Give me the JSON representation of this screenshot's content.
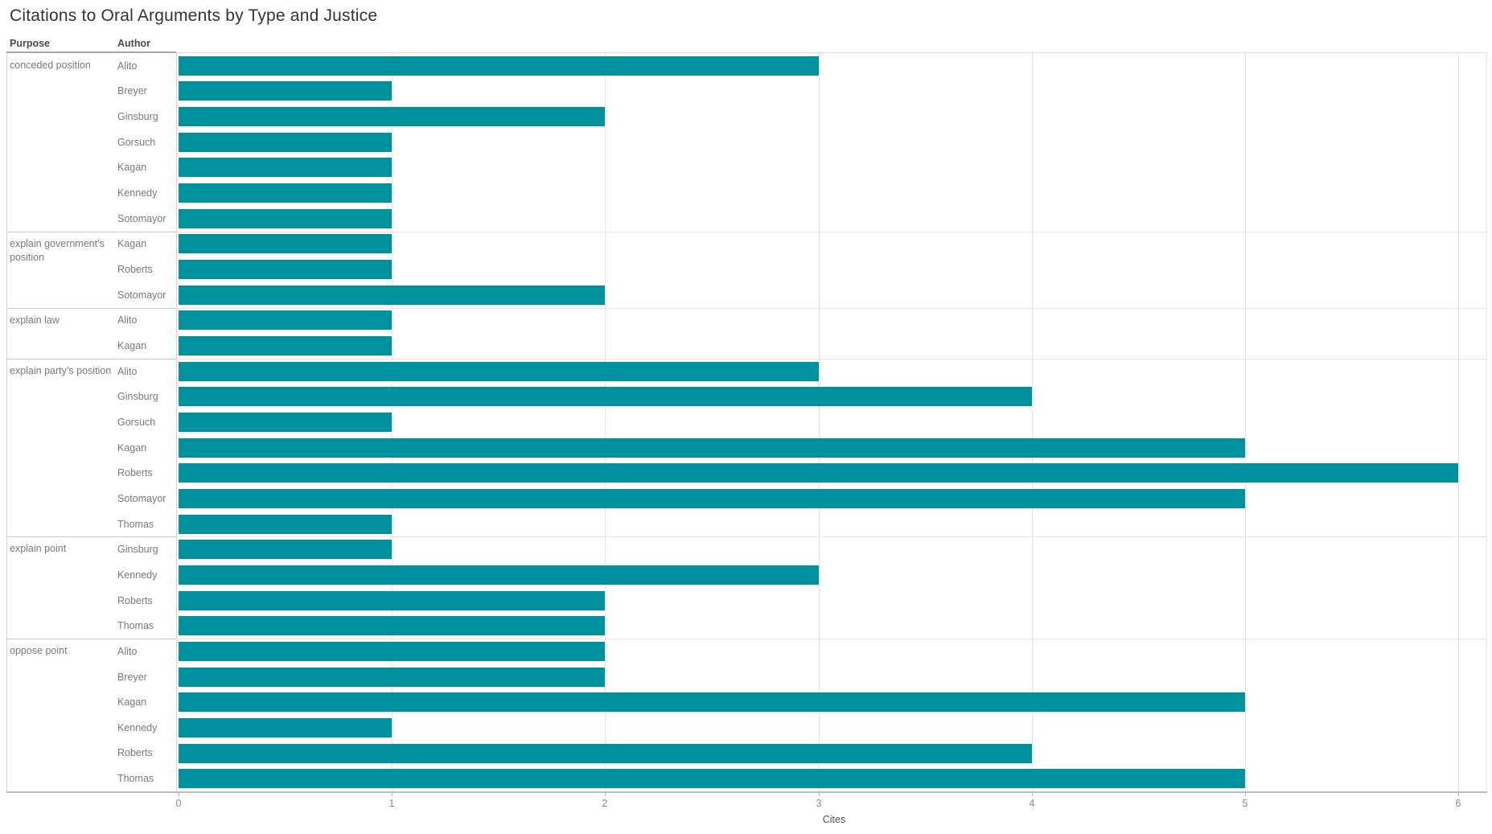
{
  "title": "Citations to Oral Arguments by Type and Justice",
  "column_headers": {
    "purpose": "Purpose",
    "author": "Author"
  },
  "axis": {
    "label": "Cites",
    "tick_labels": [
      "0",
      "1",
      "2",
      "3",
      "4",
      "5",
      "6"
    ],
    "min": 0,
    "max": 6
  },
  "colors": {
    "bar": "#00919e",
    "gridline": "#e4e4e4",
    "axis_line": "#bdbdbd"
  },
  "chart_data": {
    "type": "bar",
    "orientation": "horizontal",
    "title": "Citations to Oral Arguments by Type and Justice",
    "xlabel": "Cites",
    "xlim": [
      0,
      6
    ],
    "grid": true,
    "groups": [
      {
        "purpose": "conceded position",
        "rows": [
          {
            "author": "Alito",
            "cites": 3
          },
          {
            "author": "Breyer",
            "cites": 1
          },
          {
            "author": "Ginsburg",
            "cites": 2
          },
          {
            "author": "Gorsuch",
            "cites": 1
          },
          {
            "author": "Kagan",
            "cites": 1
          },
          {
            "author": "Kennedy",
            "cites": 1
          },
          {
            "author": "Sotomayor",
            "cites": 1
          }
        ]
      },
      {
        "purpose": "explain government’s position",
        "rows": [
          {
            "author": "Kagan",
            "cites": 1
          },
          {
            "author": "Roberts",
            "cites": 1
          },
          {
            "author": "Sotomayor",
            "cites": 2
          }
        ]
      },
      {
        "purpose": "explain law",
        "rows": [
          {
            "author": "Alito",
            "cites": 1
          },
          {
            "author": "Kagan",
            "cites": 1
          }
        ]
      },
      {
        "purpose": "explain party’s position",
        "rows": [
          {
            "author": "Alito",
            "cites": 3
          },
          {
            "author": "Ginsburg",
            "cites": 4
          },
          {
            "author": "Gorsuch",
            "cites": 1
          },
          {
            "author": "Kagan",
            "cites": 5
          },
          {
            "author": "Roberts",
            "cites": 6
          },
          {
            "author": "Sotomayor",
            "cites": 5
          },
          {
            "author": "Thomas",
            "cites": 1
          }
        ]
      },
      {
        "purpose": "explain point",
        "rows": [
          {
            "author": "Ginsburg",
            "cites": 1
          },
          {
            "author": "Kennedy",
            "cites": 3
          },
          {
            "author": "Roberts",
            "cites": 2
          },
          {
            "author": "Thomas",
            "cites": 2
          }
        ]
      },
      {
        "purpose": "oppose point",
        "rows": [
          {
            "author": "Alito",
            "cites": 2
          },
          {
            "author": "Breyer",
            "cites": 2
          },
          {
            "author": "Kagan",
            "cites": 5
          },
          {
            "author": "Kennedy",
            "cites": 1
          },
          {
            "author": "Roberts",
            "cites": 4
          },
          {
            "author": "Thomas",
            "cites": 5
          }
        ]
      }
    ]
  }
}
